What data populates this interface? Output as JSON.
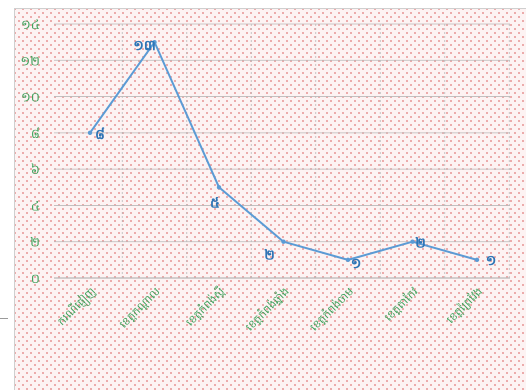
{
  "chart_data": {
    "type": "line",
    "title": "",
    "xlabel": "",
    "ylabel": "",
    "categories": [
      "ករណីផ្ញៀញ",
      "ខេត្តកណ្ដាល",
      "ខេត្តកំពង់ស្ពឺ",
      "ខេត្តកំពង់ឆ្នាំង",
      "ខេត្តកំពង់ចាម",
      "ខេត្តតាកែវ",
      "ខេត្តព្រៃវែង"
    ],
    "series": [
      {
        "values": [
          8,
          13,
          5,
          2,
          1,
          2,
          1
        ]
      }
    ],
    "data_labels": [
      "៨",
      "១៣",
      "៥",
      "២",
      "១",
      "២",
      "១"
    ],
    "yticks": [
      0,
      2,
      4,
      6,
      8,
      10,
      12,
      14
    ],
    "ytick_labels": [
      "០",
      "២",
      "៤",
      "៦",
      "៨",
      "១០",
      "១២",
      "១៤"
    ],
    "ylim": [
      0,
      14
    ],
    "grid": true,
    "legend": "none",
    "colors": {
      "line": "#5b9bd5",
      "data_label": "#2e75b6",
      "axis_label": "#3ea05a",
      "grid": "#b9b9b9"
    }
  }
}
